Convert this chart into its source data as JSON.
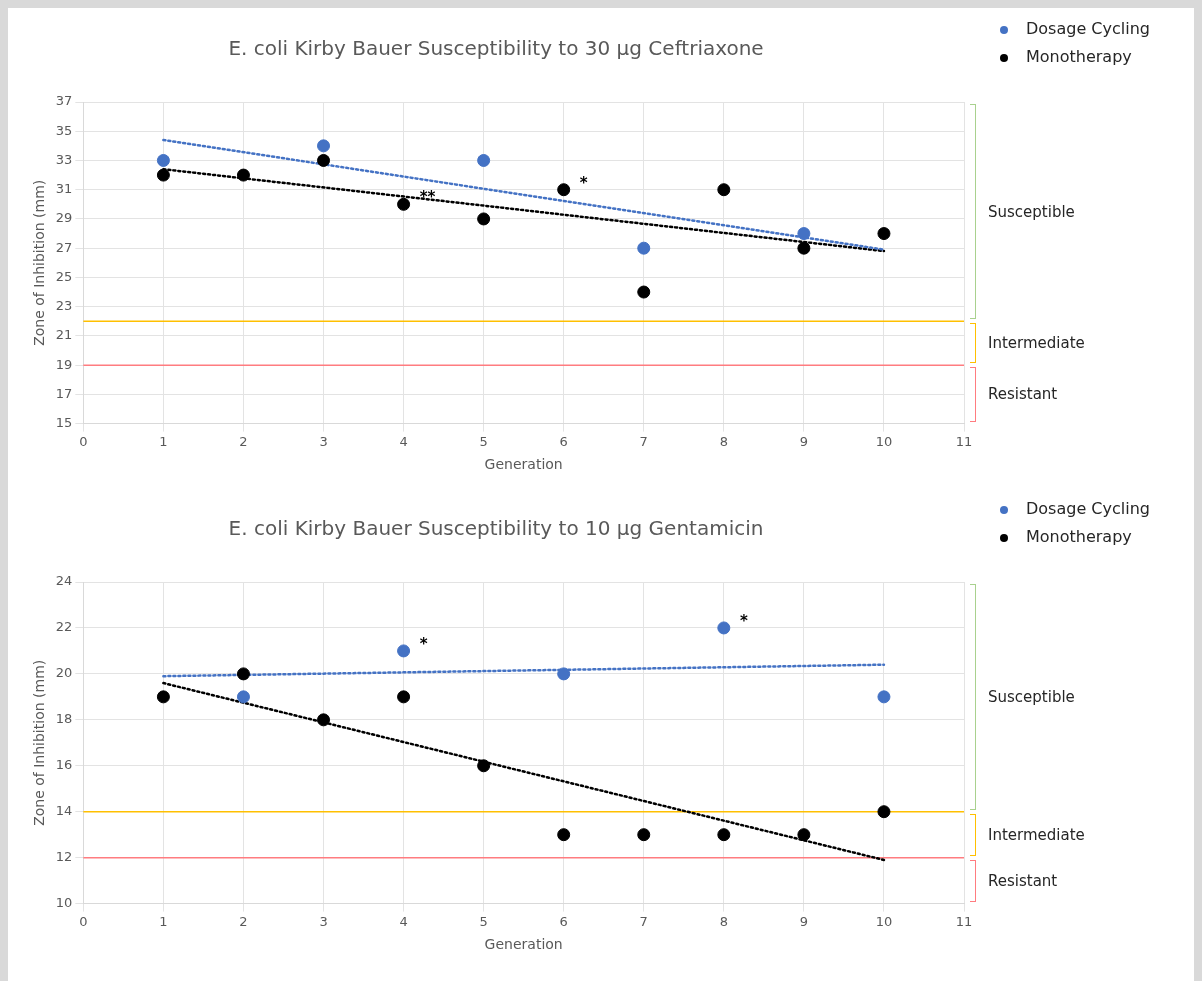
{
  "chart_data": [
    {
      "type": "scatter",
      "title": "E. coli Kirby Bauer Susceptibility to 30 µg Ceftriaxone",
      "xlabel": "Generation",
      "ylabel": "Zone of Inhibition (mm)",
      "xlim": [
        0,
        11
      ],
      "xticks": [
        0,
        1,
        2,
        3,
        4,
        5,
        6,
        7,
        8,
        9,
        10,
        11
      ],
      "ylim": [
        15,
        37
      ],
      "yticks": [
        15,
        17,
        19,
        21,
        23,
        25,
        27,
        29,
        31,
        33,
        35,
        37
      ],
      "grid": true,
      "legend": "top right",
      "marker": "circle",
      "series": [
        {
          "name": "Dosage Cycling",
          "color": "#4472c4",
          "x": [
            1,
            3,
            5,
            7,
            9
          ],
          "values": [
            33,
            34,
            33,
            27,
            28
          ]
        },
        {
          "name": "Monotherapy",
          "color": "#000000",
          "x": [
            1,
            2,
            3,
            4,
            5,
            6,
            7,
            8,
            9,
            10
          ],
          "values": [
            32,
            32,
            33,
            30,
            29,
            31,
            24,
            31,
            27,
            28
          ]
        },
        {
          "type": "line",
          "marker": "none",
          "line_style": "dotted",
          "color": "#4472c4",
          "x": [
            1,
            10
          ],
          "values": [
            34.4,
            26.9
          ]
        },
        {
          "type": "line",
          "marker": "none",
          "line_style": "dotted",
          "color": "#000000",
          "x": [
            1,
            10
          ],
          "values": [
            32.4,
            26.8
          ]
        }
      ],
      "ref_lines": [
        {
          "axis": "y",
          "value": 22,
          "color": "#ffc000"
        },
        {
          "axis": "y",
          "value": 19,
          "color": "#ff7c80"
        }
      ],
      "annotations": [
        {
          "text": "**",
          "x": 4,
          "y": 30
        },
        {
          "text": "*",
          "x": 6,
          "y": 31
        },
        "Susceptible",
        "Intermediate",
        "Resistant"
      ]
    },
    {
      "type": "scatter",
      "title": "E. coli Kirby Bauer Susceptibility to 10 µg Gentamicin",
      "xlabel": "Generation",
      "ylabel": "Zone of Inhibition (mm)",
      "xlim": [
        0,
        11
      ],
      "xticks": [
        0,
        1,
        2,
        3,
        4,
        5,
        6,
        7,
        8,
        9,
        10,
        11
      ],
      "ylim": [
        10,
        24
      ],
      "yticks": [
        10,
        12,
        14,
        16,
        18,
        20,
        22,
        24
      ],
      "grid": true,
      "legend": "top right",
      "marker": "circle",
      "series": [
        {
          "name": "Dosage Cycling",
          "color": "#4472c4",
          "x": [
            2,
            4,
            6,
            8,
            10
          ],
          "values": [
            19,
            21,
            20,
            22,
            19
          ]
        },
        {
          "name": "Monotherapy",
          "color": "#000000",
          "x": [
            1,
            2,
            3,
            4,
            5,
            6,
            7,
            8,
            9,
            10
          ],
          "values": [
            19,
            20,
            18,
            19,
            16,
            13,
            13,
            13,
            13,
            14
          ]
        },
        {
          "type": "line",
          "marker": "none",
          "line_style": "dotted",
          "color": "#4472c4",
          "x": [
            1,
            10
          ],
          "values": [
            19.9,
            20.4
          ]
        },
        {
          "type": "line",
          "marker": "none",
          "line_style": "dotted",
          "color": "#000000",
          "x": [
            1,
            10
          ],
          "values": [
            19.6,
            11.9
          ]
        }
      ],
      "ref_lines": [
        {
          "axis": "y",
          "value": 14,
          "color": "#ffc000"
        },
        {
          "axis": "y",
          "value": 12,
          "color": "#ff7c80"
        }
      ],
      "annotations": [
        {
          "text": "*",
          "x": 4,
          "y": 21
        },
        {
          "text": "*",
          "x": 8,
          "y": 22
        },
        "Susceptible",
        "Intermediate",
        "Resistant"
      ]
    }
  ]
}
